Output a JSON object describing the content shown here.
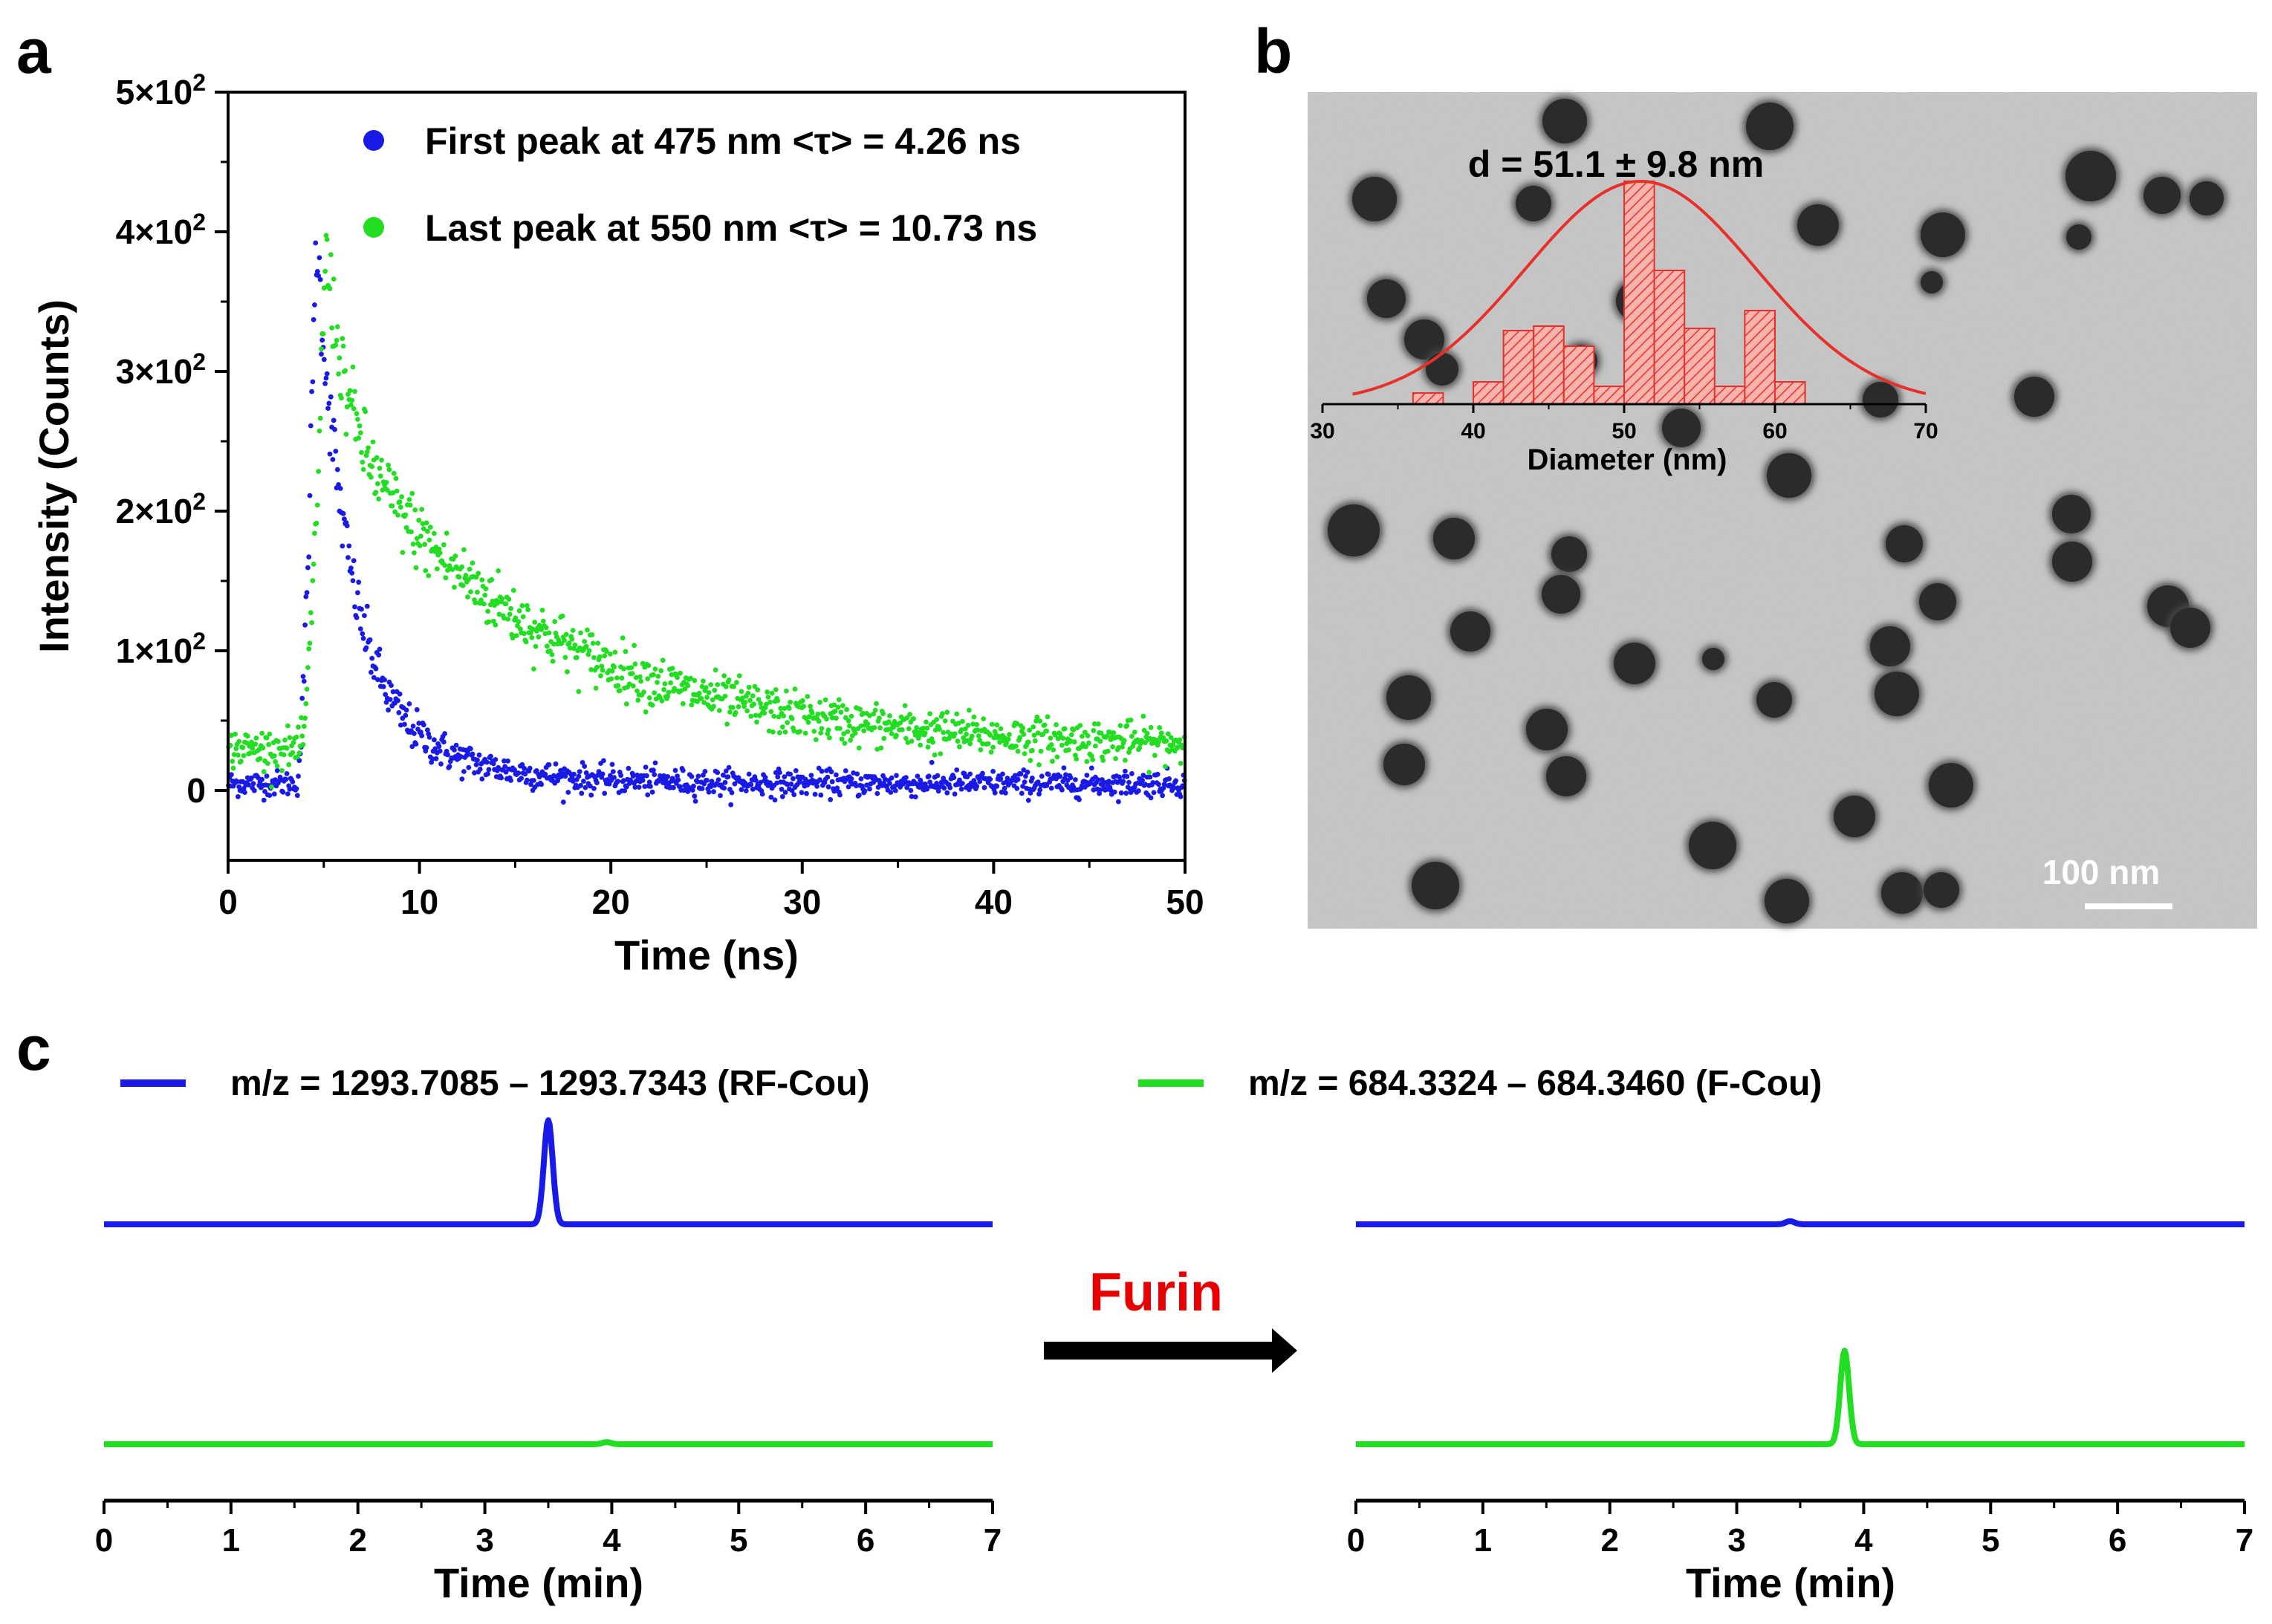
{
  "panel_labels": {
    "a": "a",
    "b": "b",
    "c": "c"
  },
  "colors": {
    "blue": "#1a1ae6",
    "green": "#22dd22",
    "red": "#e8302a",
    "arrow": "#000000",
    "furin": "#e60000"
  },
  "chart_data": [
    {
      "id": "a",
      "type": "scatter",
      "title": "",
      "xlabel": "Time (ns)",
      "ylabel": "Intensity (Counts)",
      "xlim": [
        0,
        50
      ],
      "ylim": [
        -50,
        500
      ],
      "x_ticks": [
        0,
        10,
        20,
        30,
        40,
        50
      ],
      "y_ticks": [
        {
          "value": 0,
          "mant": "0",
          "exp": ""
        },
        {
          "value": 100,
          "mant": "1×10",
          "exp": "2"
        },
        {
          "value": 200,
          "mant": "2×10",
          "exp": "2"
        },
        {
          "value": 300,
          "mant": "3×10",
          "exp": "2"
        },
        {
          "value": 400,
          "mant": "4×10",
          "exp": "2"
        },
        {
          "value": 500,
          "mant": "5×10",
          "exp": "2"
        }
      ],
      "legend_position": "top-right",
      "series": [
        {
          "name": "First peak at 475 nm <τ> = 4.26 ns",
          "color": "#1a1ae6",
          "baseline": 5,
          "rise_start": 3.6,
          "peak_time": 4.6,
          "peak": 400,
          "fast_amp": 300,
          "fast_tau": 1.5,
          "slow_tau": 4.26
        },
        {
          "name": "Last peak at 550 nm <τ> = 10.73 ns",
          "color": "#22dd22",
          "baseline": 30,
          "rise_start": 3.8,
          "peak_time": 5.1,
          "peak": 390,
          "fast_amp": 120,
          "fast_tau": 1.0,
          "slow_tau": 10.73
        }
      ]
    },
    {
      "id": "b-inset",
      "type": "bar",
      "title": "d = 51.1 ± 9.8 nm",
      "xlabel": "Diameter (nm)",
      "ylabel": "",
      "xlim": [
        30,
        70
      ],
      "ylim": [
        0,
        1.1
      ],
      "x_ticks": [
        30,
        40,
        50,
        60,
        70
      ],
      "bins": [
        {
          "x0": 36,
          "x1": 38,
          "value": 0.05
        },
        {
          "x0": 40,
          "x1": 42,
          "value": 0.1
        },
        {
          "x0": 42,
          "x1": 44,
          "value": 0.33
        },
        {
          "x0": 44,
          "x1": 46,
          "value": 0.35
        },
        {
          "x0": 46,
          "x1": 48,
          "value": 0.26
        },
        {
          "x0": 48,
          "x1": 50,
          "value": 0.08
        },
        {
          "x0": 50,
          "x1": 52,
          "value": 1.0
        },
        {
          "x0": 52,
          "x1": 54,
          "value": 0.6
        },
        {
          "x0": 54,
          "x1": 56,
          "value": 0.34
        },
        {
          "x0": 56,
          "x1": 58,
          "value": 0.08
        },
        {
          "x0": 58,
          "x1": 60,
          "value": 0.42
        },
        {
          "x0": 60,
          "x1": 62,
          "value": 0.1
        }
      ],
      "fit": {
        "type": "gaussian",
        "mean": 51.1,
        "sd": 9.8,
        "peak": 1.0,
        "color": "#e8302a"
      }
    },
    {
      "id": "c-left",
      "type": "line",
      "xlabel": "Time (min)",
      "xlim": [
        0,
        7
      ],
      "x_ticks": [
        0,
        1,
        2,
        3,
        4,
        5,
        6,
        7
      ],
      "series": [
        {
          "name": "m/z = 1293.7085 – 1293.7343 (RF-Cou)",
          "color": "#1a1ae6",
          "peak_time": 3.5,
          "peak_height": 1.0
        },
        {
          "name": "m/z = 684.3324 – 684.3460 (F-Cou)",
          "color": "#22dd22",
          "peak_time": 3.96,
          "peak_height": 0.02
        }
      ]
    },
    {
      "id": "c-right",
      "type": "line",
      "xlabel": "Time (min)",
      "xlim": [
        0,
        7
      ],
      "x_ticks": [
        0,
        1,
        2,
        3,
        4,
        5,
        6,
        7
      ],
      "series": [
        {
          "name": "m/z = 1293.7085 – 1293.7343 (RF-Cou)",
          "color": "#1a1ae6",
          "peak_time": 3.42,
          "peak_height": 0.03
        },
        {
          "name": "m/z = 684.3324 – 684.3460 (F-Cou)",
          "color": "#22dd22",
          "peak_time": 3.85,
          "peak_height": 0.9
        }
      ]
    }
  ],
  "panel_b": {
    "scale_bar_label": "100 nm"
  },
  "panel_c": {
    "legend": [
      {
        "label": "m/z = 1293.7085 – 1293.7343 (RF-Cou)",
        "color": "#1a1ae6"
      },
      {
        "label": "m/z = 684.3324 – 684.3460 (F-Cou)",
        "color": "#22dd22"
      }
    ],
    "arrow_label": "Furin"
  }
}
